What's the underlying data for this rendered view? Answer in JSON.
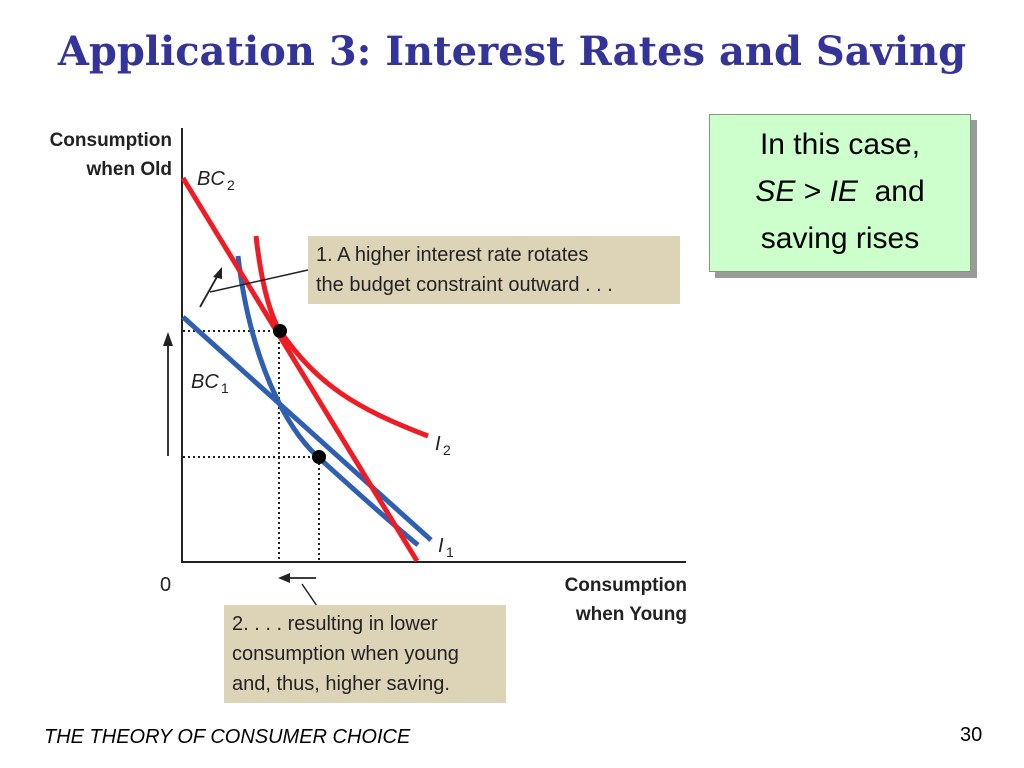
{
  "slide": {
    "title": "Application 3:  Interest Rates and Saving",
    "footer": "THE THEORY OF CONSUMER CHOICE",
    "page_number": "30"
  },
  "note": {
    "line1": "In this case,",
    "se": "SE",
    "gt": " > ",
    "ie": "IE",
    "and": "  and",
    "line3": "saving rises"
  },
  "graph": {
    "y_axis_label_1": "Consumption",
    "y_axis_label_2": "when Old",
    "x_axis_label_1": "Consumption",
    "x_axis_label_2": "when Young",
    "origin": "0",
    "bc2_main": "BC",
    "bc2_sub": "2",
    "bc1_main": "BC",
    "bc1_sub": "1",
    "i2_main": "I",
    "i2_sub": "2",
    "i1_main": "I",
    "i1_sub": "1",
    "colors": {
      "budget_new": "#ee1c24",
      "budget_old": "#2e5fb0",
      "callout_bg": "#ddd4b8"
    }
  },
  "callouts": {
    "first": [
      "1. A higher interest rate rotates",
      "the budget constraint outward . . ."
    ],
    "second": [
      "2. . . . resulting in lower",
      "consumption when young",
      "and, thus, higher saving."
    ]
  }
}
